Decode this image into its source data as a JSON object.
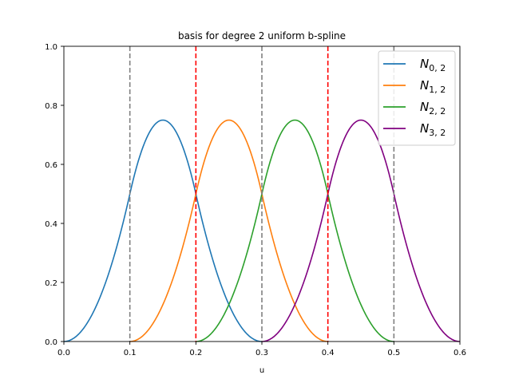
{
  "chart_data": {
    "type": "line",
    "title": "basis for degree 2 uniform b-spline",
    "xlabel": "u",
    "ylabel": "",
    "xlim": [
      0.0,
      0.6
    ],
    "ylim": [
      0.0,
      1.0
    ],
    "xticks": [
      "0.0",
      "0.1",
      "0.2",
      "0.3",
      "0.4",
      "0.5",
      "0.6"
    ],
    "yticks": [
      "0.0",
      "0.2",
      "0.4",
      "0.6",
      "0.8",
      "1.0"
    ],
    "grid": false,
    "legend_position": "top-right",
    "knots": [
      0.0,
      0.1,
      0.2,
      0.3,
      0.4,
      0.5,
      0.6
    ],
    "series": [
      {
        "name": "N",
        "sub": "0, 2",
        "color": "#1f77b4",
        "x": [
          0.0,
          0.05,
          0.1,
          0.15,
          0.2,
          0.25,
          0.3
        ],
        "y": [
          0.0,
          0.125,
          0.5,
          0.75,
          0.5,
          0.125,
          0.0
        ]
      },
      {
        "name": "N",
        "sub": "1, 2",
        "color": "#ff7f0e",
        "x": [
          0.1,
          0.15,
          0.2,
          0.25,
          0.3,
          0.35,
          0.4
        ],
        "y": [
          0.0,
          0.125,
          0.5,
          0.75,
          0.5,
          0.125,
          0.0
        ]
      },
      {
        "name": "N",
        "sub": "2, 2",
        "color": "#2ca02c",
        "x": [
          0.2,
          0.25,
          0.3,
          0.35,
          0.4,
          0.45,
          0.5
        ],
        "y": [
          0.0,
          0.125,
          0.5,
          0.75,
          0.5,
          0.125,
          0.0
        ]
      },
      {
        "name": "N",
        "sub": "3, 2",
        "color": "#800080",
        "x": [
          0.3,
          0.35,
          0.4,
          0.45,
          0.5,
          0.55,
          0.6
        ],
        "y": [
          0.0,
          0.125,
          0.5,
          0.75,
          0.5,
          0.125,
          0.0
        ]
      }
    ],
    "vlines": [
      {
        "x": 0.1,
        "color": "#808080",
        "style": "dashed"
      },
      {
        "x": 0.2,
        "color": "#ff0000",
        "style": "dashed"
      },
      {
        "x": 0.3,
        "color": "#808080",
        "style": "dashed"
      },
      {
        "x": 0.4,
        "color": "#ff0000",
        "style": "dashed"
      },
      {
        "x": 0.5,
        "color": "#808080",
        "style": "dashed"
      }
    ]
  }
}
